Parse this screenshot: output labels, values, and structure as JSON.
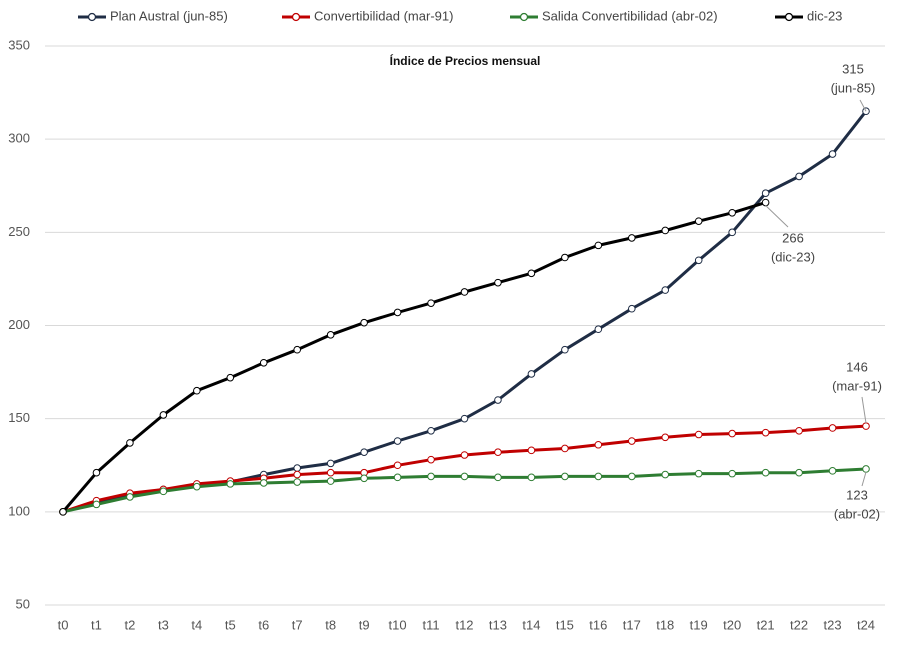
{
  "chart_data": {
    "type": "line",
    "title": "Índice de Precios mensual",
    "categories": [
      "t0",
      "t1",
      "t2",
      "t3",
      "t4",
      "t5",
      "t6",
      "t7",
      "t8",
      "t9",
      "t10",
      "t11",
      "t12",
      "t13",
      "t14",
      "t15",
      "t16",
      "t17",
      "t18",
      "t19",
      "t20",
      "t21",
      "t22",
      "t23",
      "t24"
    ],
    "ylim": [
      50,
      350
    ],
    "yticks": [
      50,
      100,
      150,
      200,
      250,
      300,
      350
    ],
    "grid": true,
    "legend": "top",
    "series": [
      {
        "name": "Plan Austral (jun-85)",
        "color": "#1f2d45",
        "values": [
          100,
          105,
          109,
          112,
          114,
          116,
          120,
          123.5,
          126,
          132,
          138,
          143.5,
          150,
          160,
          174,
          187,
          198,
          209,
          219,
          235,
          250,
          271,
          280,
          292,
          315
        ]
      },
      {
        "name": "Convertibilidad (mar-91)",
        "color": "#c00000",
        "values": [
          100,
          106,
          110,
          112,
          115,
          116.5,
          118,
          120,
          121,
          121,
          125,
          128,
          130.5,
          132,
          133,
          134,
          136,
          138,
          140,
          141.5,
          142,
          142.5,
          143.5,
          145,
          146
        ]
      },
      {
        "name": "Salida Convertibilidad (abr-02)",
        "color": "#2e7d32",
        "values": [
          100,
          104,
          108,
          111,
          113.5,
          115,
          115.5,
          116,
          116.5,
          118,
          118.5,
          119,
          119,
          118.5,
          118.5,
          119,
          119,
          119,
          120,
          120.5,
          120.5,
          121,
          121,
          122,
          123
        ]
      },
      {
        "name": "dic-23",
        "color": "#000000",
        "values": [
          100,
          121,
          137,
          152,
          165,
          172,
          180,
          187,
          195,
          201.5,
          207,
          212,
          218,
          223,
          228,
          236.5,
          243,
          247,
          251,
          256,
          260.5,
          266,
          null,
          null,
          null
        ]
      }
    ],
    "annotations": [
      {
        "value": 315,
        "note": "(jun-85)"
      },
      {
        "value": 266,
        "note": "(dic-23)"
      },
      {
        "value": 146,
        "note": "(mar-91)"
      },
      {
        "value": 123,
        "note": "(abr-02)"
      }
    ]
  }
}
